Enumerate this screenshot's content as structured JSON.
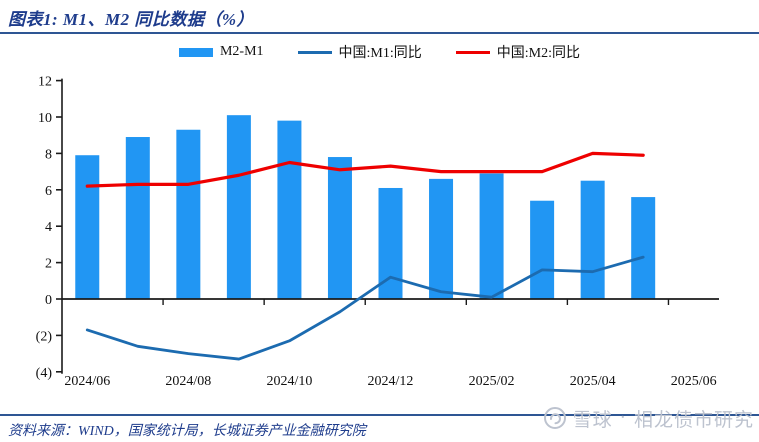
{
  "header": {
    "title": "图表1: M1、M2 同比数据（%）"
  },
  "legend": {
    "items": [
      {
        "label": "M2-M1",
        "swatch": "bar",
        "color": "#2196F3"
      },
      {
        "label": "中国:M1:同比",
        "swatch": "line",
        "color": "#1C6BB0"
      },
      {
        "label": "中国:M2:同比",
        "swatch": "line",
        "color": "#EE0000"
      }
    ]
  },
  "chart_data": {
    "type": "bar",
    "title": "M1、M2 同比数据（%）",
    "xlabel": "",
    "ylabel": "",
    "categories": [
      "2024/06",
      "2024/07",
      "2024/08",
      "2024/09",
      "2024/10",
      "2024/11",
      "2024/12",
      "2025/01",
      "2025/02",
      "2025/03",
      "2025/04",
      "2025/05"
    ],
    "series": [
      {
        "name": "M2-M1",
        "type": "bar",
        "color": "#2196F3",
        "values": [
          7.9,
          8.9,
          9.3,
          10.1,
          9.8,
          7.8,
          6.1,
          6.6,
          6.9,
          5.4,
          6.5,
          5.6
        ]
      },
      {
        "name": "中国:M1:同比",
        "type": "line",
        "color": "#1C6BB0",
        "values": [
          -1.7,
          -2.6,
          -3.0,
          -3.3,
          -2.3,
          -0.7,
          1.2,
          0.4,
          0.1,
          1.6,
          1.5,
          2.3
        ]
      },
      {
        "name": "中国:M2:同比",
        "type": "line",
        "color": "#EE0000",
        "values": [
          6.2,
          6.3,
          6.3,
          6.8,
          7.5,
          7.1,
          7.3,
          7.0,
          7.0,
          7.0,
          8.0,
          7.9
        ]
      }
    ],
    "x_tick_labels": [
      "2024/06",
      "2024/08",
      "2024/10",
      "2024/12",
      "2025/02",
      "2025/04",
      "2025/06"
    ],
    "x_slots": 13,
    "y_ticks": [
      12,
      10,
      8,
      6,
      4,
      2,
      0,
      -2,
      -4
    ],
    "y_tick_labels": [
      "12",
      "10",
      "8",
      "6",
      "4",
      "2",
      "0",
      "(2)",
      "(4)"
    ],
    "ylim": [
      -4,
      12
    ],
    "grid": "off",
    "legend_position": "top",
    "negative_label_color": "#FF0000",
    "axis_color": "#1a1a1a"
  },
  "footer": {
    "source": "资料来源：WIND，国家统计局，长城证券产业金融研究院"
  },
  "watermark": {
    "brand": "雪球",
    "separator": "·",
    "account": "相龙债市研究"
  }
}
